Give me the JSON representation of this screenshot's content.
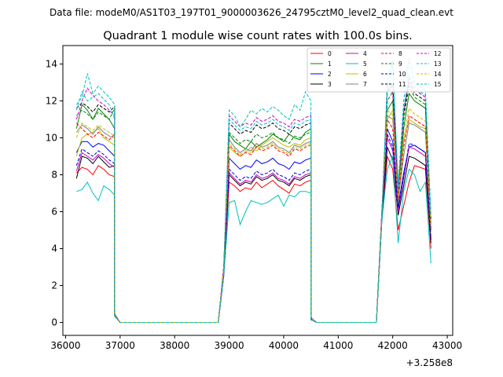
{
  "figure": {
    "suptitle": "Data file: modeM0/AS1T03_197T01_9000003626_24795cztM0_level2_quad_clean.evt",
    "title": "Quadrant 1 module wise count rates with 100.0s bins.",
    "x_offset_label": "+3.258e8"
  },
  "chart_data": {
    "type": "line",
    "title": "Quadrant 1 module wise count rates with 100.0s bins.",
    "xlim": [
      35950,
      43100
    ],
    "ylim": [
      -0.7,
      15
    ],
    "x_offset": 325800000,
    "x_ticks": [
      36000,
      37000,
      38000,
      39000,
      40000,
      41000,
      42000,
      43000
    ],
    "x_tick_labels": [
      "36000",
      "37000",
      "38000",
      "39000",
      "40000",
      "41000",
      "42000",
      "43000"
    ],
    "y_ticks": [
      0,
      2,
      4,
      6,
      8,
      10,
      12,
      14
    ],
    "y_tick_labels": [
      "0",
      "2",
      "4",
      "6",
      "8",
      "10",
      "12",
      "14"
    ],
    "legend": {
      "position": "upper-right",
      "columns": 4
    },
    "segments": [
      {
        "start": 36200,
        "n": 8
      },
      {
        "start": 39000,
        "n": 16
      },
      {
        "start": 41900,
        "n": 9
      }
    ],
    "gaps": [
      {
        "x": [
          37000,
          37100,
          37200,
          37300,
          37400,
          37500,
          37600,
          37700,
          37800,
          37900,
          38000,
          38100,
          38200,
          38300,
          38400,
          38500,
          38600,
          38700,
          38800
        ],
        "edge_left": [
          36900,
          0.35
        ],
        "edge_right": [
          38900,
          2.5
        ]
      },
      {
        "x": [
          40600,
          40700,
          40800,
          40900,
          41000,
          41100,
          41200,
          41300,
          41400,
          41500,
          41600,
          41700
        ],
        "edge_left": [
          40500,
          0.15
        ],
        "edge_right": [
          41800,
          5.5
        ]
      }
    ],
    "series": [
      {
        "name": "0",
        "color": "#ff0000",
        "dash": "solid",
        "values": [
          8.1,
          8.4,
          8.3,
          8.0,
          8.5,
          8.3,
          8.0,
          7.9,
          7.6,
          7.4,
          7.1,
          7.3,
          7.2,
          7.6,
          7.3,
          7.5,
          7.7,
          7.4,
          7.2,
          7.0,
          7.5,
          7.4,
          7.6,
          7.7,
          9.0,
          8.3,
          5.0,
          6.3,
          7.6,
          8.5,
          8.4,
          8.3,
          4.0
        ]
      },
      {
        "name": "1",
        "color": "#008000",
        "dash": "solid",
        "values": [
          10.5,
          11.8,
          11.5,
          11.0,
          11.6,
          11.3,
          11.0,
          10.5,
          10.2,
          9.8,
          9.6,
          9.4,
          9.8,
          9.5,
          9.7,
          9.9,
          10.2,
          10.0,
          9.8,
          10.2,
          10.0,
          9.9,
          10.3,
          10.5,
          11.5,
          12.0,
          6.8,
          10.5,
          12.4,
          12.0,
          11.8,
          11.6,
          5.0
        ]
      },
      {
        "name": "2",
        "color": "#0000ff",
        "dash": "solid",
        "values": [
          9.2,
          9.8,
          9.8,
          9.5,
          9.7,
          9.6,
          9.3,
          9.0,
          8.9,
          8.6,
          8.3,
          8.5,
          8.4,
          8.8,
          8.6,
          8.7,
          8.9,
          8.6,
          8.5,
          8.3,
          8.7,
          8.6,
          8.8,
          8.9,
          10.5,
          9.8,
          6.3,
          8.1,
          9.5,
          9.6,
          9.4,
          9.2,
          4.5
        ]
      },
      {
        "name": "3",
        "color": "#000000",
        "dash": "solid",
        "values": [
          7.8,
          9.0,
          8.9,
          8.6,
          9.0,
          8.7,
          8.4,
          8.5,
          8.0,
          7.7,
          7.4,
          7.6,
          7.5,
          7.9,
          7.7,
          7.8,
          8.0,
          7.7,
          7.6,
          7.4,
          7.8,
          7.7,
          7.9,
          8.0,
          9.5,
          8.8,
          5.8,
          7.4,
          9.0,
          8.9,
          8.7,
          8.5,
          4.3
        ]
      },
      {
        "name": "4",
        "color": "#cc00cc",
        "dash": "solid",
        "values": [
          8.2,
          9.2,
          9.0,
          8.8,
          9.1,
          8.9,
          8.6,
          8.4,
          8.1,
          7.8,
          7.5,
          7.7,
          7.6,
          8.0,
          7.8,
          7.9,
          8.1,
          7.8,
          7.7,
          7.5,
          7.9,
          7.8,
          8.0,
          8.1,
          10.0,
          9.3,
          6.0,
          7.8,
          9.5,
          9.4,
          9.2,
          9.0,
          4.6
        ]
      },
      {
        "name": "5",
        "color": "#00bfbf",
        "dash": "solid",
        "values": [
          7.1,
          7.2,
          7.6,
          7.0,
          6.6,
          7.4,
          7.2,
          6.9,
          6.5,
          6.6,
          5.3,
          6.0,
          6.6,
          6.5,
          6.4,
          6.5,
          6.7,
          6.9,
          6.3,
          6.9,
          6.8,
          7.1,
          7.1,
          7.0,
          8.3,
          9.0,
          4.3,
          7.1,
          8.3,
          8.0,
          7.1,
          7.6,
          3.2
        ]
      },
      {
        "name": "6",
        "color": "#bfbf00",
        "dash": "solid",
        "values": [
          9.0,
          10.0,
          10.2,
          10.3,
          10.5,
          10.0,
          9.8,
          9.6,
          9.5,
          9.2,
          9.0,
          9.2,
          9.5,
          9.3,
          9.6,
          9.8,
          10.0,
          9.8,
          9.6,
          9.5,
          9.7,
          9.6,
          9.9,
          10.0,
          11.0,
          11.5,
          6.5,
          9.8,
          11.0,
          10.8,
          10.6,
          10.5,
          4.8
        ]
      },
      {
        "name": "7",
        "color": "#808080",
        "dash": "solid",
        "values": [
          10.3,
          10.7,
          10.5,
          10.2,
          10.6,
          10.3,
          10.1,
          10.0,
          9.9,
          9.5,
          9.2,
          9.4,
          9.3,
          9.7,
          9.5,
          9.6,
          9.8,
          9.5,
          9.4,
          9.2,
          9.6,
          9.5,
          9.7,
          9.8,
          11.2,
          11.0,
          6.6,
          9.0,
          10.8,
          10.7,
          10.5,
          10.3,
          5.0
        ]
      },
      {
        "name": "8",
        "color": "#ff0000",
        "dash": "dashed",
        "values": [
          10.8,
          10.5,
          10.2,
          10.0,
          10.3,
          10.1,
          9.9,
          10.2,
          9.6,
          9.3,
          9.0,
          9.2,
          9.1,
          9.5,
          9.3,
          9.4,
          9.6,
          9.3,
          9.2,
          9.0,
          9.4,
          9.3,
          9.5,
          9.6,
          11.0,
          10.5,
          6.7,
          9.5,
          11.2,
          11.0,
          10.8,
          10.6,
          5.1
        ]
      },
      {
        "name": "9",
        "color": "#008000",
        "dash": "dashed",
        "values": [
          11.2,
          11.5,
          11.3,
          11.0,
          11.4,
          11.2,
          11.0,
          11.6,
          10.3,
          10.0,
          9.7,
          9.9,
          9.8,
          10.2,
          10.0,
          10.1,
          10.3,
          10.0,
          9.9,
          9.7,
          10.1,
          10.0,
          10.2,
          10.3,
          12.0,
          12.5,
          7.0,
          11.0,
          12.8,
          12.2,
          12.0,
          11.8,
          5.3
        ]
      },
      {
        "name": "10",
        "color": "#0000cc",
        "dash": "dashed",
        "values": [
          8.5,
          9.4,
          9.2,
          9.0,
          9.3,
          9.1,
          8.8,
          8.6,
          8.3,
          8.0,
          7.7,
          7.9,
          7.8,
          8.2,
          8.0,
          8.1,
          8.3,
          8.0,
          7.9,
          7.7,
          8.1,
          8.0,
          8.2,
          8.3,
          10.2,
          9.5,
          6.2,
          7.9,
          9.7,
          9.6,
          9.4,
          9.2,
          4.5
        ]
      },
      {
        "name": "11",
        "color": "#000000",
        "dash": "dashed",
        "values": [
          11.6,
          11.9,
          11.7,
          11.4,
          11.8,
          11.6,
          11.4,
          11.7,
          10.8,
          10.5,
          10.2,
          10.4,
          10.3,
          10.7,
          10.5,
          10.6,
          10.8,
          10.5,
          10.4,
          10.2,
          10.6,
          10.5,
          10.7,
          10.8,
          12.5,
          12.9,
          7.2,
          11.3,
          13.0,
          12.4,
          12.2,
          12.0,
          5.5
        ]
      },
      {
        "name": "12",
        "color": "#cc00cc",
        "dash": "dashed",
        "values": [
          11.0,
          12.0,
          12.7,
          12.3,
          12.0,
          11.8,
          11.5,
          11.2,
          11.2,
          10.9,
          10.6,
          10.8,
          10.7,
          11.1,
          10.9,
          11.0,
          11.2,
          10.9,
          10.8,
          10.6,
          11.0,
          10.9,
          11.1,
          11.2,
          12.8,
          12.4,
          7.1,
          11.4,
          13.2,
          12.6,
          12.4,
          12.2,
          5.6
        ]
      },
      {
        "name": "13",
        "color": "#00bfbf",
        "dash": "dashed",
        "values": [
          11.8,
          12.2,
          13.5,
          12.4,
          12.8,
          12.5,
          12.2,
          11.8,
          11.5,
          11.2,
          10.6,
          11.0,
          11.5,
          11.3,
          11.6,
          11.4,
          11.7,
          11.5,
          11.2,
          11.0,
          11.8,
          11.5,
          12.5,
          12.0,
          12.5,
          14.0,
          7.5,
          12.0,
          14.3,
          13.0,
          12.8,
          12.6,
          5.8
        ]
      },
      {
        "name": "14",
        "color": "#bfbf00",
        "dash": "dashed",
        "values": [
          10.0,
          10.8,
          10.6,
          10.4,
          10.7,
          10.5,
          10.3,
          10.1,
          9.7,
          9.4,
          9.1,
          9.3,
          9.2,
          9.6,
          9.4,
          9.5,
          9.7,
          9.4,
          9.3,
          9.1,
          9.5,
          9.4,
          9.6,
          9.7,
          11.5,
          11.2,
          6.8,
          10.0,
          11.6,
          11.3,
          11.1,
          10.9,
          5.2
        ]
      },
      {
        "name": "15",
        "color": "#00bfbf",
        "dash": "dashed",
        "values": [
          11.5,
          12.5,
          12.0,
          12.2,
          12.4,
          12.1,
          11.8,
          11.0,
          11.0,
          10.7,
          10.4,
          10.6,
          10.5,
          10.9,
          10.7,
          10.8,
          11.0,
          10.7,
          10.6,
          10.4,
          10.8,
          10.7,
          10.9,
          11.0,
          13.2,
          14.2,
          7.3,
          11.6,
          13.4,
          12.8,
          12.5,
          12.3,
          5.7
        ]
      }
    ]
  }
}
